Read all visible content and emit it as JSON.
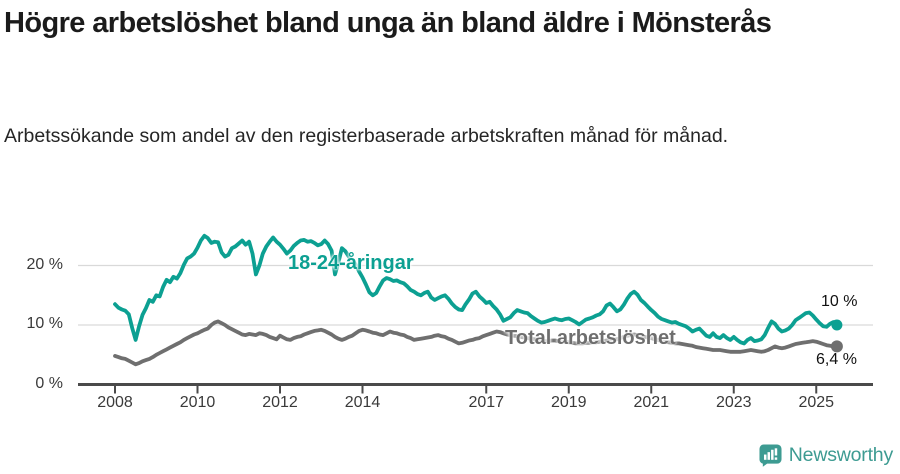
{
  "header": {
    "title": "Högre arbetslöshet bland unga än bland äldre i Mönsterås",
    "subtitle": "Arbetssökande som andel av den registerbaserade arbetskraften månad för månad."
  },
  "chart_data": {
    "type": "line",
    "title": "Högre arbetslöshet bland unga än bland äldre i Mönsterås",
    "x_start_year": 2008,
    "x_step_months": 1,
    "x_axis": {
      "tick_years": [
        2008,
        2010,
        2012,
        2014,
        2017,
        2019,
        2021,
        2023,
        2025
      ],
      "tick_labels": [
        "2008",
        "2010",
        "2012",
        "2014",
        "2017",
        "2019",
        "2021",
        "2023",
        "2025"
      ]
    },
    "y_axis": {
      "unit": "%",
      "tick_values": [
        0,
        10,
        20
      ],
      "tick_labels": [
        "0 %",
        "10 %",
        "20 %"
      ],
      "range": [
        0,
        26
      ]
    },
    "grid": "horizontal",
    "colors": {
      "axis": "#4a4a4a",
      "gridline": "#d9d9d9"
    },
    "series": [
      {
        "name": "18-24-åringar",
        "color": "#0ca092",
        "end_value_label": "10 %",
        "end_value": 10.0,
        "values": [
          13.5,
          12.9,
          12.6,
          12.4,
          11.8,
          9.5,
          7.5,
          9.8,
          11.7,
          12.8,
          14.2,
          13.9,
          15.0,
          14.8,
          16.4,
          17.6,
          17.2,
          18.1,
          17.8,
          18.7,
          20.1,
          21.2,
          21.5,
          22.0,
          23.0,
          24.2,
          25.0,
          24.6,
          23.8,
          24.0,
          23.9,
          22.2,
          21.5,
          21.8,
          22.9,
          23.2,
          23.7,
          24.2,
          23.5,
          24.0,
          22.0,
          18.5,
          20.0,
          22.0,
          23.2,
          24.0,
          24.7,
          24.0,
          23.5,
          22.8,
          22.0,
          22.5,
          23.3,
          23.8,
          24.2,
          24.3,
          24.0,
          24.1,
          23.8,
          23.4,
          23.6,
          24.2,
          23.6,
          22.5,
          18.5,
          20.5,
          22.9,
          22.4,
          21.5,
          20.8,
          20.2,
          19.0,
          18.0,
          16.8,
          15.5,
          15.0,
          15.4,
          16.5,
          17.5,
          17.9,
          17.7,
          17.4,
          17.5,
          17.2,
          17.0,
          16.5,
          15.9,
          15.6,
          15.2,
          15.0,
          15.4,
          15.6,
          14.6,
          14.2,
          14.5,
          14.8,
          15.0,
          14.4,
          13.6,
          13.0,
          12.6,
          12.5,
          13.5,
          14.3,
          15.3,
          15.6,
          14.8,
          14.3,
          13.7,
          13.9,
          13.2,
          12.6,
          11.8,
          10.7,
          11.0,
          11.3,
          12.0,
          12.5,
          12.3,
          12.1,
          12.0,
          11.5,
          11.1,
          10.7,
          10.4,
          10.5,
          10.7,
          10.9,
          11.1,
          10.9,
          10.8,
          11.0,
          11.1,
          10.8,
          10.5,
          10.1,
          10.5,
          10.9,
          11.1,
          11.3,
          11.6,
          11.8,
          12.3,
          13.3,
          13.6,
          13.0,
          12.3,
          12.6,
          13.4,
          14.4,
          15.2,
          15.6,
          15.1,
          14.2,
          13.7,
          13.1,
          12.5,
          12.0,
          11.4,
          11.0,
          10.8,
          10.6,
          10.4,
          10.5,
          10.2,
          10.0,
          9.8,
          9.4,
          8.9,
          9.2,
          9.4,
          8.8,
          8.2,
          8.0,
          8.6,
          8.0,
          7.8,
          8.3,
          7.8,
          7.5,
          8.0,
          7.5,
          7.1,
          6.9,
          7.5,
          7.8,
          7.3,
          7.4,
          7.6,
          8.3,
          9.5,
          10.6,
          10.2,
          9.4,
          8.9,
          9.1,
          9.4,
          10.0,
          10.8,
          11.2,
          11.6,
          12.0,
          12.1,
          11.6,
          10.9,
          10.3,
          9.8,
          9.7,
          10.2,
          10.5,
          10.0
        ]
      },
      {
        "name": "Total arbetslöshet",
        "color": "#6f6f6f",
        "end_value_label": "6,4 %",
        "end_value": 6.4,
        "values": [
          4.8,
          4.6,
          4.4,
          4.3,
          4.0,
          3.7,
          3.4,
          3.6,
          3.9,
          4.1,
          4.3,
          4.6,
          5.0,
          5.3,
          5.6,
          5.9,
          6.2,
          6.5,
          6.8,
          7.1,
          7.5,
          7.8,
          8.1,
          8.4,
          8.6,
          8.9,
          9.2,
          9.4,
          10.0,
          10.4,
          10.6,
          10.3,
          10.0,
          9.6,
          9.3,
          9.0,
          8.7,
          8.4,
          8.3,
          8.5,
          8.4,
          8.3,
          8.6,
          8.5,
          8.3,
          8.0,
          7.8,
          7.6,
          8.2,
          7.9,
          7.6,
          7.5,
          7.8,
          8.0,
          8.1,
          8.4,
          8.6,
          8.8,
          9.0,
          9.1,
          9.2,
          9.0,
          8.7,
          8.4,
          8.0,
          7.7,
          7.5,
          7.7,
          8.0,
          8.2,
          8.6,
          9.0,
          9.2,
          9.1,
          8.9,
          8.7,
          8.6,
          8.4,
          8.3,
          8.6,
          8.9,
          8.7,
          8.6,
          8.4,
          8.3,
          8.0,
          7.8,
          7.5,
          7.6,
          7.7,
          7.8,
          7.9,
          8.0,
          8.2,
          8.3,
          8.1,
          8.0,
          7.7,
          7.5,
          7.2,
          6.9,
          7.0,
          7.2,
          7.4,
          7.5,
          7.7,
          7.8,
          8.1,
          8.3,
          8.5,
          8.7,
          8.9,
          8.8,
          8.6,
          8.4,
          8.3,
          8.2,
          8.1,
          8.0,
          7.9,
          7.8,
          7.7,
          7.6,
          7.5,
          7.4,
          7.3,
          7.3,
          7.4,
          7.4,
          7.3,
          7.2,
          7.2,
          7.1,
          7.0,
          6.9,
          6.9,
          6.9,
          7.0,
          7.0,
          7.1,
          7.1,
          7.2,
          7.3,
          7.4,
          7.5,
          7.5,
          7.6,
          7.8,
          8.0,
          8.2,
          8.3,
          8.4,
          8.3,
          8.2,
          8.0,
          7.9,
          7.8,
          7.6,
          7.5,
          7.3,
          7.2,
          7.1,
          7.0,
          6.9,
          6.9,
          6.8,
          6.7,
          6.6,
          6.5,
          6.3,
          6.2,
          6.1,
          6.0,
          5.9,
          5.8,
          5.8,
          5.8,
          5.7,
          5.6,
          5.5,
          5.5,
          5.5,
          5.5,
          5.6,
          5.7,
          5.8,
          5.7,
          5.6,
          5.5,
          5.6,
          5.8,
          6.1,
          6.4,
          6.2,
          6.1,
          6.2,
          6.4,
          6.6,
          6.8,
          6.9,
          7.0,
          7.1,
          7.2,
          7.3,
          7.2,
          7.0,
          6.8,
          6.6,
          6.5,
          6.4,
          6.4
        ]
      }
    ]
  },
  "footer": {
    "brand": "Newsworthy",
    "brand_color": "#3d9b92",
    "logo_icon": "newsworthy-badge-icon"
  }
}
